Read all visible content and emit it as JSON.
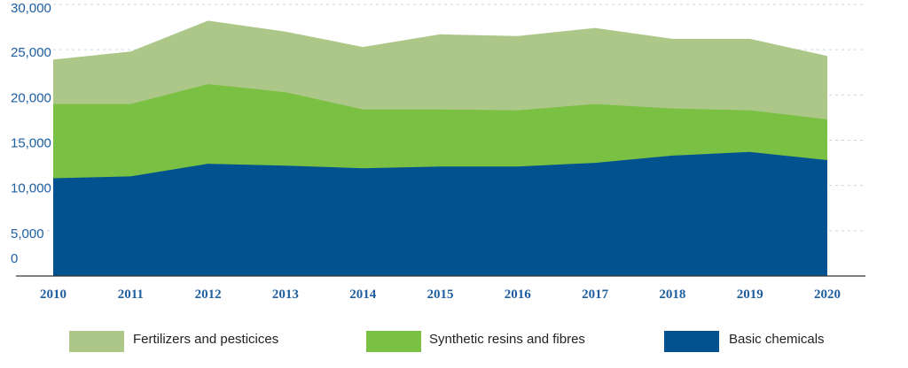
{
  "chart_data": {
    "type": "area",
    "stacked": true,
    "x": [
      "2010",
      "2011",
      "2012",
      "2013",
      "2014",
      "2015",
      "2016",
      "2017",
      "2018",
      "2019",
      "2020"
    ],
    "series": [
      {
        "name": "Basic chemicals",
        "color": "#02528f",
        "values": [
          10800,
          11000,
          12400,
          12200,
          11900,
          12100,
          12100,
          12500,
          13300,
          13700,
          12800
        ]
      },
      {
        "name": "Synthetic resins and fibres",
        "color": "#79c043",
        "values": [
          8200,
          8000,
          8800,
          8100,
          6500,
          6300,
          6200,
          6500,
          5200,
          4600,
          4500
        ]
      },
      {
        "name": "Fertilizers and pesticices",
        "color": "#adc788",
        "values": [
          4900,
          5800,
          7000,
          6700,
          6900,
          8300,
          8200,
          8400,
          7700,
          7900,
          7000
        ]
      }
    ],
    "ylim": [
      0,
      30000
    ],
    "y_ticks": [
      "30,000",
      "25,000",
      "20,000",
      "15,000",
      "10,000",
      "5,000",
      "0"
    ],
    "grid": true,
    "legend_position": "bottom"
  },
  "legend": [
    {
      "label": "Fertilizers and pesticices",
      "color": "#adc788"
    },
    {
      "label": "Synthetic resins and fibres",
      "color": "#79c043"
    },
    {
      "label": "Basic chemicals",
      "color": "#02528f"
    }
  ]
}
